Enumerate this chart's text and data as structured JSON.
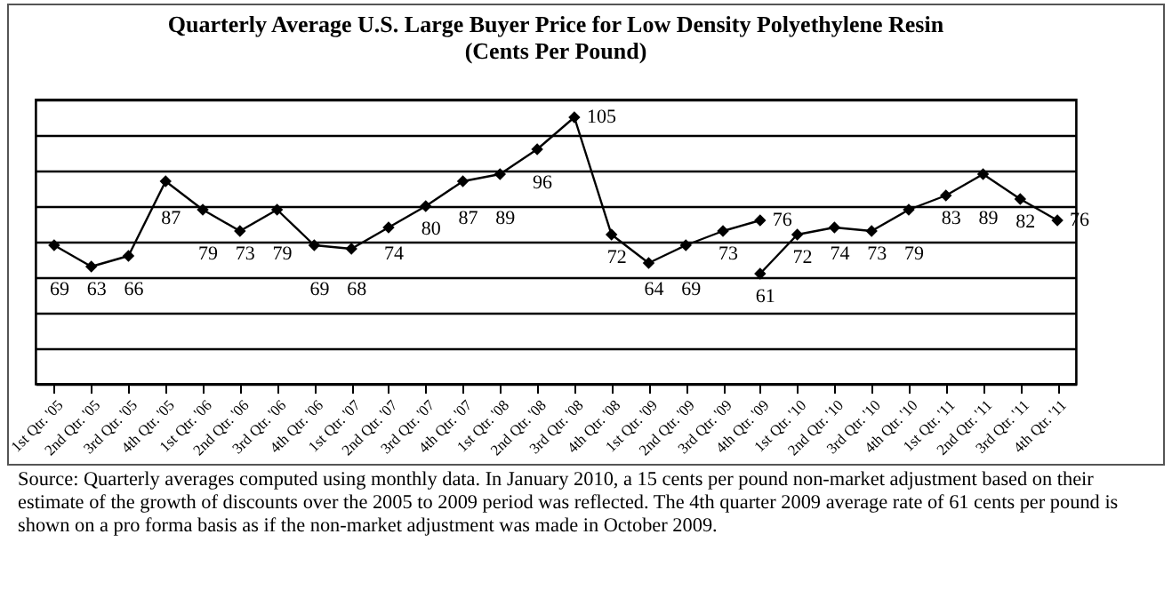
{
  "chart_data": {
    "type": "line",
    "title": [
      "Quarterly Average U.S. Large Buyer Price for Low Density Polyethylene Resin",
      "(Cents Per Pound)"
    ],
    "categories": [
      "1st Qtr. '05",
      "2nd Qtr. '05",
      "3rd Qtr. '05",
      "4th Qtr. '05",
      "1st Qtr. '06",
      "2nd Qtr. '06",
      "3rd Qtr. '06",
      "4th Qtr. '06",
      "1st Qtr. '07",
      "2nd Qtr. '07",
      "3rd Qtr. '07",
      "4th Qtr. '07",
      "1st Qtr. '08",
      "2nd Qtr. '08",
      "3rd Qtr. '08",
      "4th Qtr. '08",
      "1st Qtr. '09",
      "2nd Qtr. '09",
      "3rd Qtr. '09",
      "4th Qtr. '09",
      "1st Qtr. '10",
      "2nd Qtr. '10",
      "3rd Qtr. '10",
      "4th Qtr. '10",
      "1st Qtr. '11",
      "2nd Qtr. '11",
      "3rd Qtr. '11",
      "4th Qtr. '11"
    ],
    "series": [
      {
        "color": "#000000",
        "values": [
          69,
          63,
          66,
          87,
          79,
          73,
          79,
          69,
          68,
          74,
          80,
          87,
          89,
          96,
          105,
          72,
          64,
          69,
          73,
          76,
          null,
          null,
          null,
          null,
          null,
          null,
          null,
          null
        ]
      },
      {
        "color": "#000000",
        "values": [
          null,
          null,
          null,
          null,
          null,
          null,
          null,
          null,
          null,
          null,
          null,
          null,
          null,
          null,
          null,
          null,
          null,
          null,
          null,
          61,
          72,
          74,
          73,
          79,
          83,
          89,
          82,
          76
        ]
      }
    ],
    "ylim": [
      30,
      110
    ],
    "tick_labels": "x",
    "grid": "y",
    "legend": false,
    "marker": "diamond",
    "line_style": "solid",
    "data_labels": true,
    "annotations": [
      "Source:  Quarterly averages computed using monthly data.  In January 2010, a 15 cents per pound non-market adjustment based on their estimate of the growth of discounts over the 2005 to 2009 period was reflected.  The 4th quarter 2009 average rate of 61 cents per pound is shown on a pro forma basis as if the non-market adjustment was made in October 2009."
    ]
  }
}
